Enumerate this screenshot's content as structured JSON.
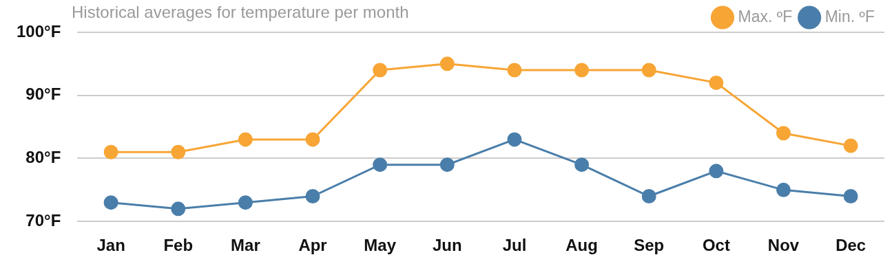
{
  "chart_data": {
    "type": "line",
    "title": "Historical averages for temperature per month",
    "categories": [
      "Jan",
      "Feb",
      "Mar",
      "Apr",
      "May",
      "Jun",
      "Jul",
      "Aug",
      "Sep",
      "Oct",
      "Nov",
      "Dec"
    ],
    "series": [
      {
        "name": "Max. ºF",
        "color": "#f7a535",
        "values": [
          81,
          81,
          83,
          83,
          94,
          95,
          94,
          94,
          94,
          92,
          84,
          82
        ]
      },
      {
        "name": "Min. ºF",
        "color": "#4a7eaa",
        "values": [
          73,
          72,
          73,
          74,
          79,
          79,
          83,
          79,
          74,
          78,
          75,
          74
        ]
      }
    ],
    "ylim": [
      70,
      100
    ],
    "yticks": [
      {
        "value": 70,
        "label": "70°F"
      },
      {
        "value": 80,
        "label": "80°F"
      },
      {
        "value": 90,
        "label": "90°F"
      },
      {
        "value": 100,
        "label": "100°F"
      }
    ],
    "grid": true,
    "legend": "top-right",
    "marker": "circle"
  }
}
